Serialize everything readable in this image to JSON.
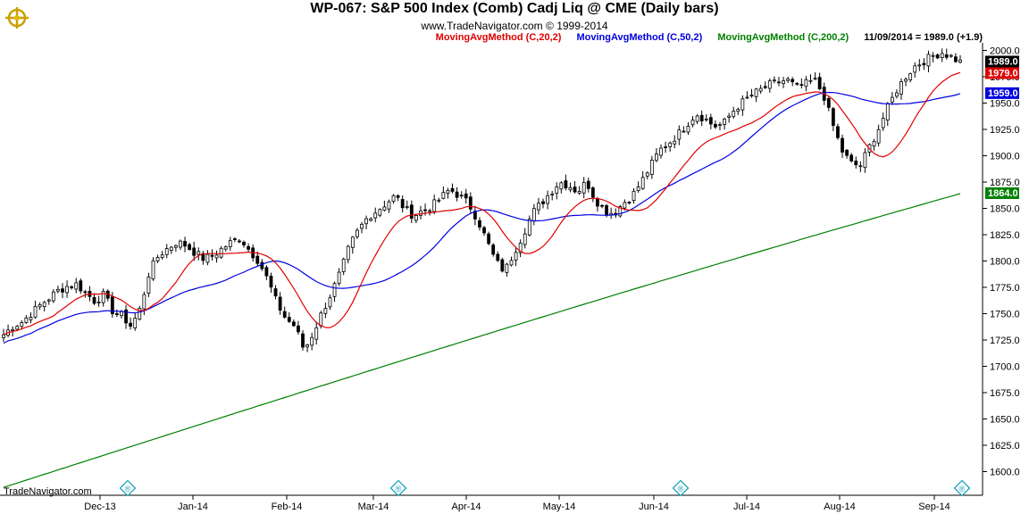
{
  "title": "WP-067:  S&P 500 Index (Comb) Cadj Liq @ CME  (Daily bars)",
  "subtitle": "www.TradeNavigator.com © 1999-2014",
  "legend": {
    "ma20": "MovingAvgMethod (C,20,2)",
    "ma50": "MovingAvgMethod (C,50,2)",
    "ma200": "MovingAvgMethod (C,200,2)",
    "last": "11/09/2014 = 1989.0 (+1.9)"
  },
  "footer_brand": "TradeNavigator.com",
  "colors": {
    "ma20": "#e00000",
    "ma50": "#0000e0",
    "ma200": "#008000",
    "candle": "#000000"
  },
  "chart_data": {
    "type": "candlestick",
    "ylim": [
      1590,
      2010
    ],
    "y_ticks": [
      "2000.0",
      "1975.0",
      "1950.0",
      "1925.0",
      "1900.0",
      "1875.0",
      "1850.0",
      "1825.0",
      "1800.0",
      "1775.0",
      "1750.0",
      "1725.0",
      "1700.0",
      "1675.0",
      "1650.0",
      "1625.0",
      "1600.0"
    ],
    "x_labels": [
      "Dec-13",
      "Jan-14",
      "Feb-14",
      "Mar-14",
      "Apr-14",
      "May-14",
      "Jun-14",
      "Jul-14",
      "Aug-14",
      "Sep-14"
    ],
    "close_path": [
      1730,
      1738,
      1742,
      1750,
      1758,
      1765,
      1772,
      1776,
      1778,
      1770,
      1762,
      1768,
      1752,
      1748,
      1738,
      1755,
      1790,
      1805,
      1812,
      1818,
      1815,
      1808,
      1802,
      1805,
      1812,
      1818,
      1822,
      1810,
      1800,
      1782,
      1760,
      1745,
      1738,
      1715,
      1732,
      1752,
      1770,
      1790,
      1815,
      1830,
      1842,
      1848,
      1855,
      1862,
      1850,
      1843,
      1848,
      1852,
      1860,
      1868,
      1862,
      1855,
      1840,
      1820,
      1800,
      1790,
      1808,
      1825,
      1845,
      1855,
      1865,
      1875,
      1872,
      1866,
      1875,
      1858,
      1848,
      1845,
      1855,
      1862,
      1875,
      1890,
      1905,
      1912,
      1920,
      1930,
      1940,
      1935,
      1928,
      1930,
      1942,
      1950,
      1957,
      1962,
      1967,
      1970,
      1972,
      1965,
      1968,
      1972,
      1958,
      1930,
      1905,
      1893,
      1890,
      1908,
      1925,
      1945,
      1962,
      1975,
      1985,
      1990,
      1995,
      1998,
      1994,
      1989
    ],
    "ma_labels": {
      "ma20": "1979.0",
      "ma50": "1959.0",
      "ma200": "1864.0",
      "last": "1989.0"
    },
    "ma20_end": 1979.0,
    "ma50_end": 1959.0,
    "ma200_end": 1864.0,
    "last": 1989.0,
    "change": 1.9
  }
}
